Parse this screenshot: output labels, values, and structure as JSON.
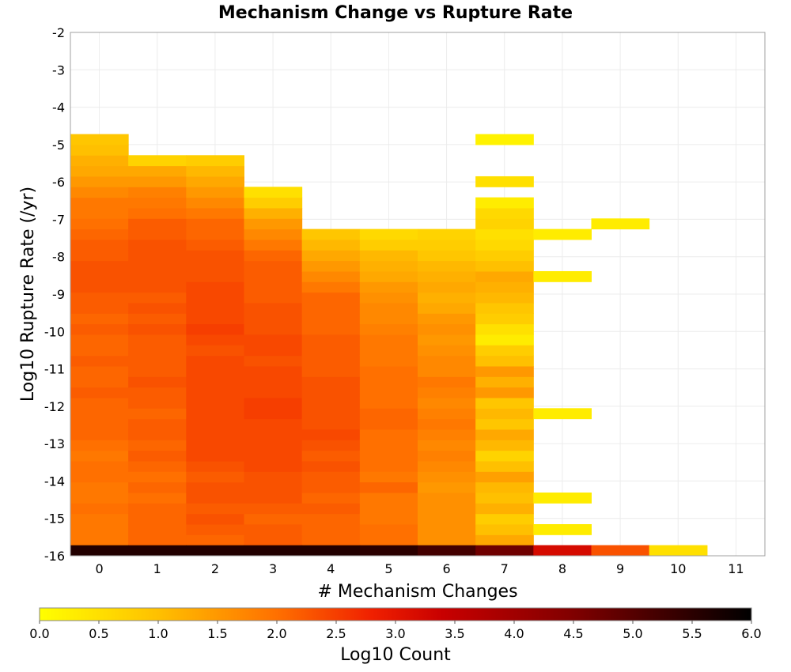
{
  "chart_data": {
    "type": "heatmap",
    "title": "Mechanism Change vs Rupture Rate",
    "xlabel": "# Mechanism Changes",
    "ylabel": "Log10 Rupture Rate (/yr)",
    "xlim": [
      -0.5,
      11.5
    ],
    "ylim": [
      -16,
      -2
    ],
    "x_ticks": [
      "0",
      "1",
      "2",
      "3",
      "4",
      "5",
      "6",
      "7",
      "8",
      "9",
      "10",
      "11"
    ],
    "y_ticks": [
      "-2",
      "-3",
      "-4",
      "-5",
      "-6",
      "-7",
      "-8",
      "-9",
      "-10",
      "-11",
      "-12",
      "-13",
      "-14",
      "-15",
      "-16"
    ],
    "grid": true,
    "colorbar": {
      "label": "Log10 Count",
      "min": 0.0,
      "max": 6.0,
      "ticks": [
        "0.0",
        "0.5",
        "1.0",
        "1.5",
        "2.0",
        "2.5",
        "3.0",
        "3.5",
        "4.0",
        "4.5",
        "5.0",
        "5.5",
        "6.0"
      ],
      "stops": [
        {
          "v": 0.0,
          "color": "#ffff00"
        },
        {
          "v": 1.0,
          "color": "#ffc000"
        },
        {
          "v": 2.0,
          "color": "#ff7000"
        },
        {
          "v": 2.8,
          "color": "#f02000"
        },
        {
          "v": 3.4,
          "color": "#c80000"
        },
        {
          "v": 4.5,
          "color": "#800000"
        },
        {
          "v": 6.0,
          "color": "#000000"
        }
      ]
    },
    "bin_height": 0.282,
    "bin_start": -16,
    "columns": [
      {
        "x": 0,
        "start_bin": 1,
        "values": [
          1.9,
          1.9,
          1.9,
          2.0,
          1.9,
          1.9,
          2.0,
          2.0,
          1.9,
          2.0,
          2.1,
          2.1,
          2.1,
          2.1,
          2.2,
          2.1,
          2.1,
          2.2,
          2.1,
          2.1,
          2.2,
          2.1,
          2.2,
          2.2,
          2.3,
          2.3,
          2.3,
          2.2,
          2.2,
          2.1,
          2.0,
          1.9,
          1.9,
          1.7,
          1.5,
          1.3,
          1.2,
          1.0,
          0.9
        ]
      },
      {
        "x": 1,
        "start_bin": 1,
        "values": [
          2.1,
          2.1,
          2.1,
          2.1,
          2.0,
          2.1,
          2.0,
          2.1,
          2.2,
          2.1,
          2.2,
          2.2,
          2.1,
          2.2,
          2.2,
          2.3,
          2.2,
          2.2,
          2.2,
          2.2,
          2.3,
          2.2,
          2.3,
          2.2,
          2.3,
          2.3,
          2.3,
          2.3,
          2.3,
          2.2,
          2.2,
          2.0,
          1.9,
          1.8,
          1.5,
          1.3,
          0.7
        ]
      },
      {
        "x": 2,
        "start_bin": 1,
        "values": [
          2.1,
          2.2,
          2.3,
          2.2,
          2.3,
          2.3,
          2.2,
          2.3,
          2.4,
          2.4,
          2.4,
          2.4,
          2.4,
          2.4,
          2.4,
          2.4,
          2.4,
          2.4,
          2.3,
          2.4,
          2.5,
          2.4,
          2.4,
          2.4,
          2.4,
          2.3,
          2.3,
          2.3,
          2.2,
          2.1,
          2.1,
          1.9,
          1.7,
          1.5,
          1.3,
          1.1,
          0.8
        ]
      },
      {
        "x": 3,
        "start_bin": 1,
        "values": [
          2.2,
          2.2,
          2.1,
          2.2,
          2.3,
          2.3,
          2.3,
          2.4,
          2.4,
          2.4,
          2.4,
          2.4,
          2.5,
          2.5,
          2.4,
          2.4,
          2.4,
          2.3,
          2.4,
          2.4,
          2.3,
          2.3,
          2.3,
          2.2,
          2.2,
          2.2,
          2.2,
          2.1,
          1.9,
          1.7,
          1.5,
          1.2,
          0.8,
          0.5
        ]
      },
      {
        "x": 4,
        "start_bin": 1,
        "values": [
          2.1,
          2.1,
          2.1,
          2.2,
          2.1,
          2.2,
          2.2,
          2.3,
          2.2,
          2.3,
          2.4,
          2.3,
          2.3,
          2.3,
          2.3,
          2.3,
          2.2,
          2.2,
          2.2,
          2.2,
          2.1,
          2.1,
          2.1,
          2.1,
          1.9,
          1.7,
          1.5,
          1.3,
          1.1,
          0.9
        ]
      },
      {
        "x": 5,
        "start_bin": 1,
        "values": [
          2.0,
          2.0,
          1.9,
          1.9,
          1.9,
          2.1,
          1.9,
          2.0,
          2.0,
          2.0,
          2.0,
          2.1,
          2.1,
          2.0,
          2.0,
          2.0,
          2.0,
          1.9,
          1.9,
          1.9,
          1.8,
          1.7,
          1.7,
          1.6,
          1.5,
          1.3,
          1.2,
          1.1,
          0.8,
          0.6
        ]
      },
      {
        "x": 6,
        "start_bin": 1,
        "values": [
          1.6,
          1.6,
          1.6,
          1.6,
          1.6,
          1.5,
          1.6,
          1.7,
          1.8,
          1.7,
          1.8,
          1.9,
          1.8,
          1.7,
          1.8,
          1.9,
          1.7,
          1.7,
          1.6,
          1.5,
          1.6,
          1.5,
          1.3,
          1.2,
          1.3,
          1.2,
          1.1,
          0.9,
          0.8,
          0.7
        ]
      },
      {
        "x": 7,
        "start_bin": 1,
        "values": [
          1.3,
          1.0,
          0.8,
          1.2,
          1.0,
          1.1,
          1.4,
          1.0,
          0.7,
          1.1,
          1.3,
          0.9,
          1.1,
          0.9,
          1.5,
          1.2,
          1.5,
          1.0,
          0.8,
          0.3,
          0.5,
          0.8,
          0.9,
          1.1,
          1.2,
          1.3,
          1.0,
          0.8,
          0.6,
          0.5,
          0.7,
          0.6,
          0.3,
          null,
          0.5,
          null,
          null,
          null,
          0.2
        ]
      },
      {
        "x": 8,
        "start_bin": 0,
        "values": [
          3.2,
          null,
          0.3,
          null,
          null,
          0.3,
          null,
          null,
          null,
          null,
          null,
          null,
          null,
          0.3,
          null,
          null,
          null,
          null,
          null,
          null,
          null,
          null,
          null,
          null,
          null,
          null,
          0.3,
          null,
          null,
          null,
          0.3
        ]
      },
      {
        "x": 9,
        "start_bin": 0,
        "values": [
          2.3,
          null,
          null,
          null,
          null,
          null,
          null,
          null,
          null,
          null,
          null,
          null,
          null,
          null,
          null,
          null,
          null,
          null,
          null,
          null,
          null,
          null,
          null,
          null,
          null,
          null,
          null,
          null,
          null,
          null,
          null,
          0.3
        ]
      },
      {
        "x": 10,
        "start_bin": 0,
        "values": [
          0.5
        ]
      },
      {
        "x": 11,
        "start_bin": 0,
        "values": []
      }
    ],
    "bottom_row": {
      "y": -16,
      "values": [
        5.6,
        5.6,
        5.6,
        5.6,
        5.6,
        5.5,
        5.2,
        4.7,
        3.2,
        2.3,
        0.5,
        null
      ]
    }
  }
}
